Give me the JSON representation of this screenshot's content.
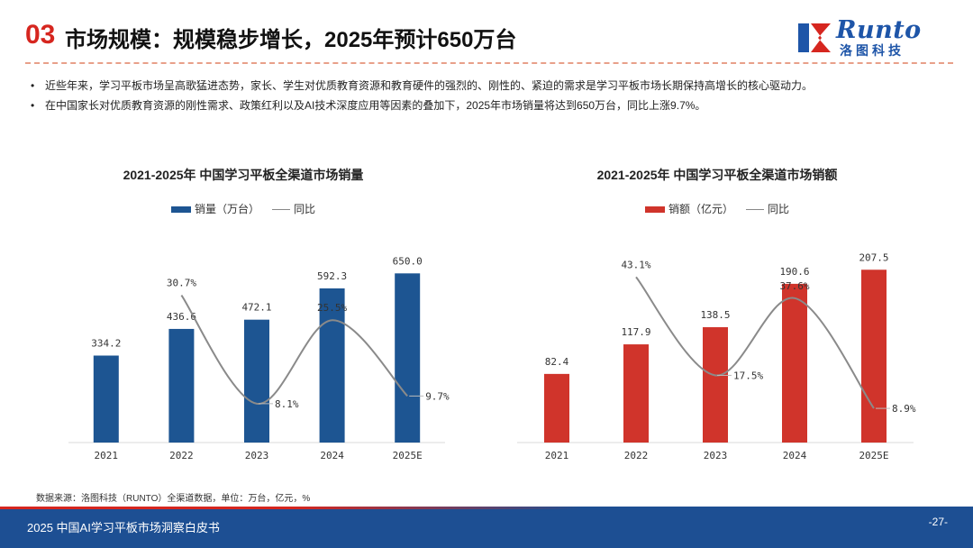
{
  "header": {
    "section_number": "03",
    "title": "市场规模：规模稳步增长，2025年预计650万台"
  },
  "logo": {
    "brand": "Runto",
    "name_cn": "洛图科技"
  },
  "bullets": [
    "近些年来，学习平板市场呈高歌猛进态势，家长、学生对优质教育资源和教育硬件的强烈的、刚性的、紧迫的需求是学习平板市场长期保持高增长的核心驱动力。",
    "在中国家长对优质教育资源的刚性需求、政策红利以及AI技术深度应用等因素的叠加下，2025年市场销量将达到650万台，同比上涨9.7%。"
  ],
  "bullet_symbol": "•",
  "chart_data": [
    {
      "type": "bar",
      "title": "2021-2025年 中国学习平板全渠道市场销量",
      "legend_bar": "销量（万台）",
      "legend_line": "同比",
      "categories": [
        "2021",
        "2022",
        "2023",
        "2024",
        "2025E"
      ],
      "series": [
        {
          "name": "销量（万台）",
          "kind": "bar",
          "values": [
            334.2,
            436.6,
            472.1,
            592.3,
            650.0
          ],
          "labels": [
            "334.2",
            "436.6",
            "472.1",
            "592.3",
            "650.0"
          ]
        },
        {
          "name": "同比",
          "kind": "line",
          "values": [
            null,
            30.7,
            8.1,
            25.5,
            9.7
          ],
          "labels": [
            "",
            "30.7%",
            "8.1%",
            "25.5%",
            "9.7%"
          ]
        }
      ],
      "ylim": [
        0,
        800
      ],
      "line_ylim": [
        0,
        40
      ],
      "bar_color": "#1d5592",
      "line_color": "#8a8a8a"
    },
    {
      "type": "bar",
      "title": "2021-2025年 中国学习平板全渠道市场销额",
      "legend_bar": "销额（亿元）",
      "legend_line": "同比",
      "categories": [
        "2021",
        "2022",
        "2023",
        "2024",
        "2025E"
      ],
      "series": [
        {
          "name": "销额（亿元）",
          "kind": "bar",
          "values": [
            82.4,
            117.9,
            138.5,
            190.6,
            207.5
          ],
          "labels": [
            "82.4",
            "117.9",
            "138.5",
            "190.6",
            "207.5"
          ]
        },
        {
          "name": "同比",
          "kind": "line",
          "values": [
            null,
            43.1,
            17.5,
            37.6,
            8.9
          ],
          "labels": [
            "",
            "43.1%",
            "17.5%",
            "37.6%",
            "8.9%"
          ]
        }
      ],
      "ylim": [
        0,
        250
      ],
      "line_ylim": [
        0,
        50
      ],
      "bar_color": "#d0342b",
      "line_color": "#8a8a8a"
    }
  ],
  "source": "数据来源：洛图科技（RUNTO）全渠道数据，单位：万台，亿元，%",
  "footer": {
    "text": "2025 中国AI学习平板市场洞察白皮书",
    "page": "-27-"
  },
  "colors": {
    "accent_red": "#d6261f",
    "brand_blue": "#1d4f93"
  }
}
